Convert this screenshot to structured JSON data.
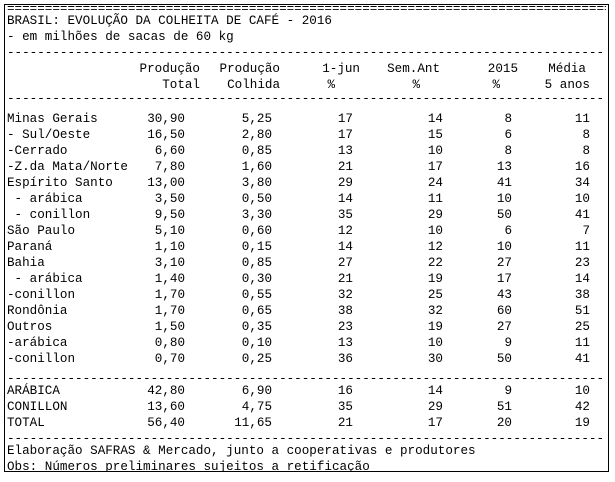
{
  "title": "BRASIL: EVOLUÇÃO DA COLHEITA DE CAFÉ - 2016",
  "subtitle": "- em milhões de sacas de 60 kg",
  "rule_double": "====================================================================================================",
  "rule_single": "----------------------------------------------------------------------------------------------------",
  "columns": [
    {
      "line1": "Produção",
      "line2": "Total"
    },
    {
      "line1": "Produção",
      "line2": "Colhida"
    },
    {
      "line1": "1-jun",
      "line2": "%"
    },
    {
      "line1": "Sem.Ant",
      "line2": "%"
    },
    {
      "line1": "2015",
      "line2": "%"
    },
    {
      "line1": "Média",
      "line2": "5 anos"
    }
  ],
  "rows": [
    {
      "label": "Minas Gerais",
      "v": [
        "30,90",
        "5,25",
        "17",
        "14",
        "8",
        "11"
      ]
    },
    {
      "label": "- Sul/Oeste",
      "v": [
        "16,50",
        "2,80",
        "17",
        "15",
        "6",
        "8"
      ]
    },
    {
      "label": "-Cerrado",
      "v": [
        "6,60",
        "0,85",
        "13",
        "10",
        "8",
        "8"
      ]
    },
    {
      "label": "-Z.da Mata/Norte",
      "v": [
        "7,80",
        "1,60",
        "21",
        "17",
        "13",
        "16"
      ]
    },
    {
      "label": "Espírito Santo",
      "v": [
        "13,00",
        "3,80",
        "29",
        "24",
        "41",
        "34"
      ]
    },
    {
      "label": " - arábica",
      "v": [
        "3,50",
        "0,50",
        "14",
        "11",
        "10",
        "10"
      ]
    },
    {
      "label": " - conillon",
      "v": [
        "9,50",
        "3,30",
        "35",
        "29",
        "50",
        "41"
      ]
    },
    {
      "label": "São Paulo",
      "v": [
        "5,10",
        "0,60",
        "12",
        "10",
        "6",
        "7"
      ]
    },
    {
      "label": "Paraná",
      "v": [
        "1,10",
        "0,15",
        "14",
        "12",
        "10",
        "11"
      ]
    },
    {
      "label": "Bahia",
      "v": [
        "3,10",
        "0,85",
        "27",
        "22",
        "27",
        "23"
      ]
    },
    {
      "label": " - arábica",
      "v": [
        "1,40",
        "0,30",
        "21",
        "19",
        "17",
        "14"
      ]
    },
    {
      "label": "-conillon",
      "v": [
        "1,70",
        "0,55",
        "32",
        "25",
        "43",
        "38"
      ]
    },
    {
      "label": "Rondônia",
      "v": [
        "1,70",
        "0,65",
        "38",
        "32",
        "60",
        "51"
      ]
    },
    {
      "label": "Outros",
      "v": [
        "1,50",
        "0,35",
        "23",
        "19",
        "27",
        "25"
      ]
    },
    {
      "label": "-arábica",
      "v": [
        "0,80",
        "0,10",
        "13",
        "10",
        "9",
        "11"
      ]
    },
    {
      "label": "-conillon",
      "v": [
        "0,70",
        "0,25",
        "36",
        "30",
        "50",
        "41"
      ]
    }
  ],
  "totals": [
    {
      "label": "ARÁBICA",
      "v": [
        "42,80",
        "6,90",
        "16",
        "14",
        "9",
        "10"
      ]
    },
    {
      "label": "CONILLON",
      "v": [
        "13,60",
        "4,75",
        "35",
        "29",
        "51",
        "42"
      ]
    },
    {
      "label": "TOTAL",
      "v": [
        "56,40",
        "11,65",
        "21",
        "17",
        "20",
        "19"
      ]
    }
  ],
  "footer": [
    "Elaboração SAFRAS & Mercado, junto a cooperativas e produtores",
    "Obs: Números preliminares sujeitos a retificação"
  ]
}
